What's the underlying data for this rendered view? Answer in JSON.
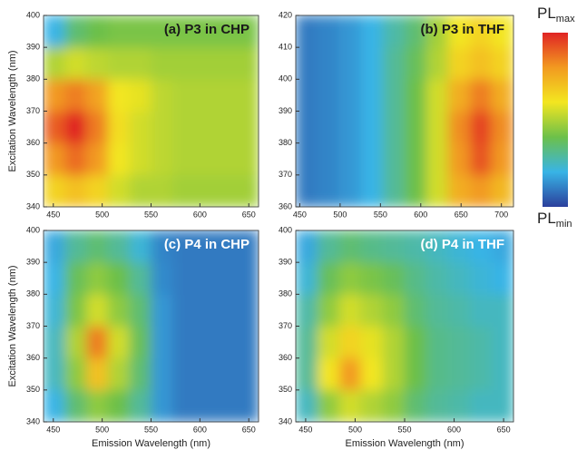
{
  "chart_data": [
    {
      "type": "heatmap",
      "title": "(a) P3 in CHP",
      "title_color": "#1a1a1a",
      "ylabel": "Excitation Wavelength (nm)",
      "xlim": [
        440,
        660
      ],
      "ylim": [
        340,
        400
      ],
      "xticks": [
        450,
        500,
        550,
        600,
        650
      ],
      "yticks": [
        340,
        350,
        360,
        370,
        380,
        390,
        400
      ],
      "x": [
        451,
        473,
        495,
        517,
        539,
        561,
        583,
        605,
        627,
        649
      ],
      "y": [
        345,
        355,
        365,
        375,
        385,
        395
      ],
      "z": [
        [
          0.65,
          0.7,
          0.65,
          0.55,
          0.5,
          0.5,
          0.48,
          0.48,
          0.48,
          0.48
        ],
        [
          0.8,
          0.88,
          0.8,
          0.6,
          0.55,
          0.52,
          0.5,
          0.5,
          0.5,
          0.5
        ],
        [
          0.9,
          1.0,
          0.85,
          0.62,
          0.55,
          0.52,
          0.5,
          0.5,
          0.5,
          0.5
        ],
        [
          0.8,
          0.85,
          0.78,
          0.6,
          0.58,
          0.52,
          0.5,
          0.5,
          0.5,
          0.5
        ],
        [
          0.5,
          0.55,
          0.52,
          0.5,
          0.5,
          0.48,
          0.48,
          0.48,
          0.48,
          0.48
        ],
        [
          0.2,
          0.35,
          0.4,
          0.42,
          0.42,
          0.42,
          0.42,
          0.42,
          0.42,
          0.42
        ]
      ]
    },
    {
      "type": "heatmap",
      "title": "(b) P3 in THF",
      "title_color": "#1a1a1a",
      "xlim": [
        445,
        715
      ],
      "ylim": [
        360,
        420
      ],
      "xticks": [
        450,
        500,
        550,
        600,
        650,
        700
      ],
      "yticks": [
        360,
        370,
        380,
        390,
        400,
        410,
        420
      ],
      "x": [
        458.5,
        485.5,
        512.5,
        539.5,
        566.5,
        593.5,
        620.5,
        647.5,
        674.5,
        701.5
      ],
      "y": [
        365,
        375,
        385,
        395,
        405,
        415
      ],
      "z": [
        [
          0.1,
          0.12,
          0.15,
          0.2,
          0.3,
          0.4,
          0.55,
          0.75,
          0.8,
          0.72
        ],
        [
          0.1,
          0.12,
          0.15,
          0.2,
          0.3,
          0.4,
          0.55,
          0.8,
          0.92,
          0.8
        ],
        [
          0.1,
          0.12,
          0.15,
          0.2,
          0.3,
          0.4,
          0.55,
          0.82,
          0.95,
          0.82
        ],
        [
          0.1,
          0.12,
          0.15,
          0.2,
          0.3,
          0.4,
          0.55,
          0.75,
          0.85,
          0.75
        ],
        [
          0.1,
          0.12,
          0.15,
          0.2,
          0.3,
          0.38,
          0.5,
          0.65,
          0.7,
          0.65
        ],
        [
          0.1,
          0.12,
          0.15,
          0.2,
          0.28,
          0.35,
          0.48,
          0.6,
          0.65,
          0.6
        ]
      ]
    },
    {
      "type": "heatmap",
      "title": "(c) P4 in CHP",
      "title_color": "#ffffff",
      "ylabel": "Excitation Wavelength (nm)",
      "xlabel": "Emission Wavelength (nm)",
      "xlim": [
        440,
        660
      ],
      "ylim": [
        340,
        400
      ],
      "xticks": [
        450,
        500,
        550,
        600,
        650
      ],
      "yticks": [
        340,
        350,
        360,
        370,
        380,
        390,
        400
      ],
      "x": [
        451,
        473,
        495,
        517,
        539,
        561,
        583,
        605,
        627,
        649
      ],
      "y": [
        345,
        355,
        365,
        375,
        385,
        395
      ],
      "z": [
        [
          0.2,
          0.35,
          0.45,
          0.4,
          0.3,
          0.15,
          0.1,
          0.1,
          0.1,
          0.1
        ],
        [
          0.25,
          0.45,
          0.7,
          0.5,
          0.35,
          0.15,
          0.1,
          0.1,
          0.1,
          0.1
        ],
        [
          0.25,
          0.5,
          0.85,
          0.55,
          0.38,
          0.15,
          0.1,
          0.1,
          0.1,
          0.1
        ],
        [
          0.22,
          0.42,
          0.55,
          0.45,
          0.35,
          0.15,
          0.1,
          0.1,
          0.1,
          0.1
        ],
        [
          0.2,
          0.38,
          0.45,
          0.4,
          0.3,
          0.13,
          0.1,
          0.1,
          0.1,
          0.1
        ],
        [
          0.18,
          0.3,
          0.35,
          0.3,
          0.22,
          0.12,
          0.1,
          0.1,
          0.1,
          0.1
        ]
      ]
    },
    {
      "type": "heatmap",
      "title": "(d) P4 in THF",
      "title_color": "#ffffff",
      "xlabel": "Emission Wavelength (nm)",
      "xlim": [
        440,
        660
      ],
      "ylim": [
        340,
        400
      ],
      "xticks": [
        450,
        500,
        550,
        600,
        650
      ],
      "yticks": [
        340,
        350,
        360,
        370,
        380,
        390,
        400
      ],
      "x": [
        451,
        473,
        495,
        517,
        539,
        561,
        583,
        605,
        627,
        649
      ],
      "y": [
        345,
        355,
        365,
        375,
        385,
        395
      ],
      "z": [
        [
          0.25,
          0.45,
          0.55,
          0.5,
          0.45,
          0.35,
          0.3,
          0.28,
          0.25,
          0.25
        ],
        [
          0.3,
          0.6,
          0.8,
          0.6,
          0.5,
          0.4,
          0.32,
          0.3,
          0.28,
          0.25
        ],
        [
          0.3,
          0.55,
          0.65,
          0.58,
          0.5,
          0.4,
          0.32,
          0.3,
          0.28,
          0.25
        ],
        [
          0.28,
          0.45,
          0.55,
          0.5,
          0.45,
          0.35,
          0.3,
          0.28,
          0.25,
          0.25
        ],
        [
          0.22,
          0.38,
          0.45,
          0.42,
          0.38,
          0.32,
          0.28,
          0.25,
          0.22,
          0.2
        ],
        [
          0.18,
          0.3,
          0.35,
          0.32,
          0.3,
          0.28,
          0.25,
          0.22,
          0.2,
          0.18
        ]
      ]
    }
  ],
  "colorbar": {
    "zlim": [
      0,
      1
    ],
    "colors": [
      "#2b3f9c",
      "#38b4e6",
      "#6cc04a",
      "#f3e620",
      "#f29a20",
      "#e02424"
    ],
    "max_label": "PL",
    "max_sub": "max",
    "min_label": "PL",
    "min_sub": "min"
  }
}
